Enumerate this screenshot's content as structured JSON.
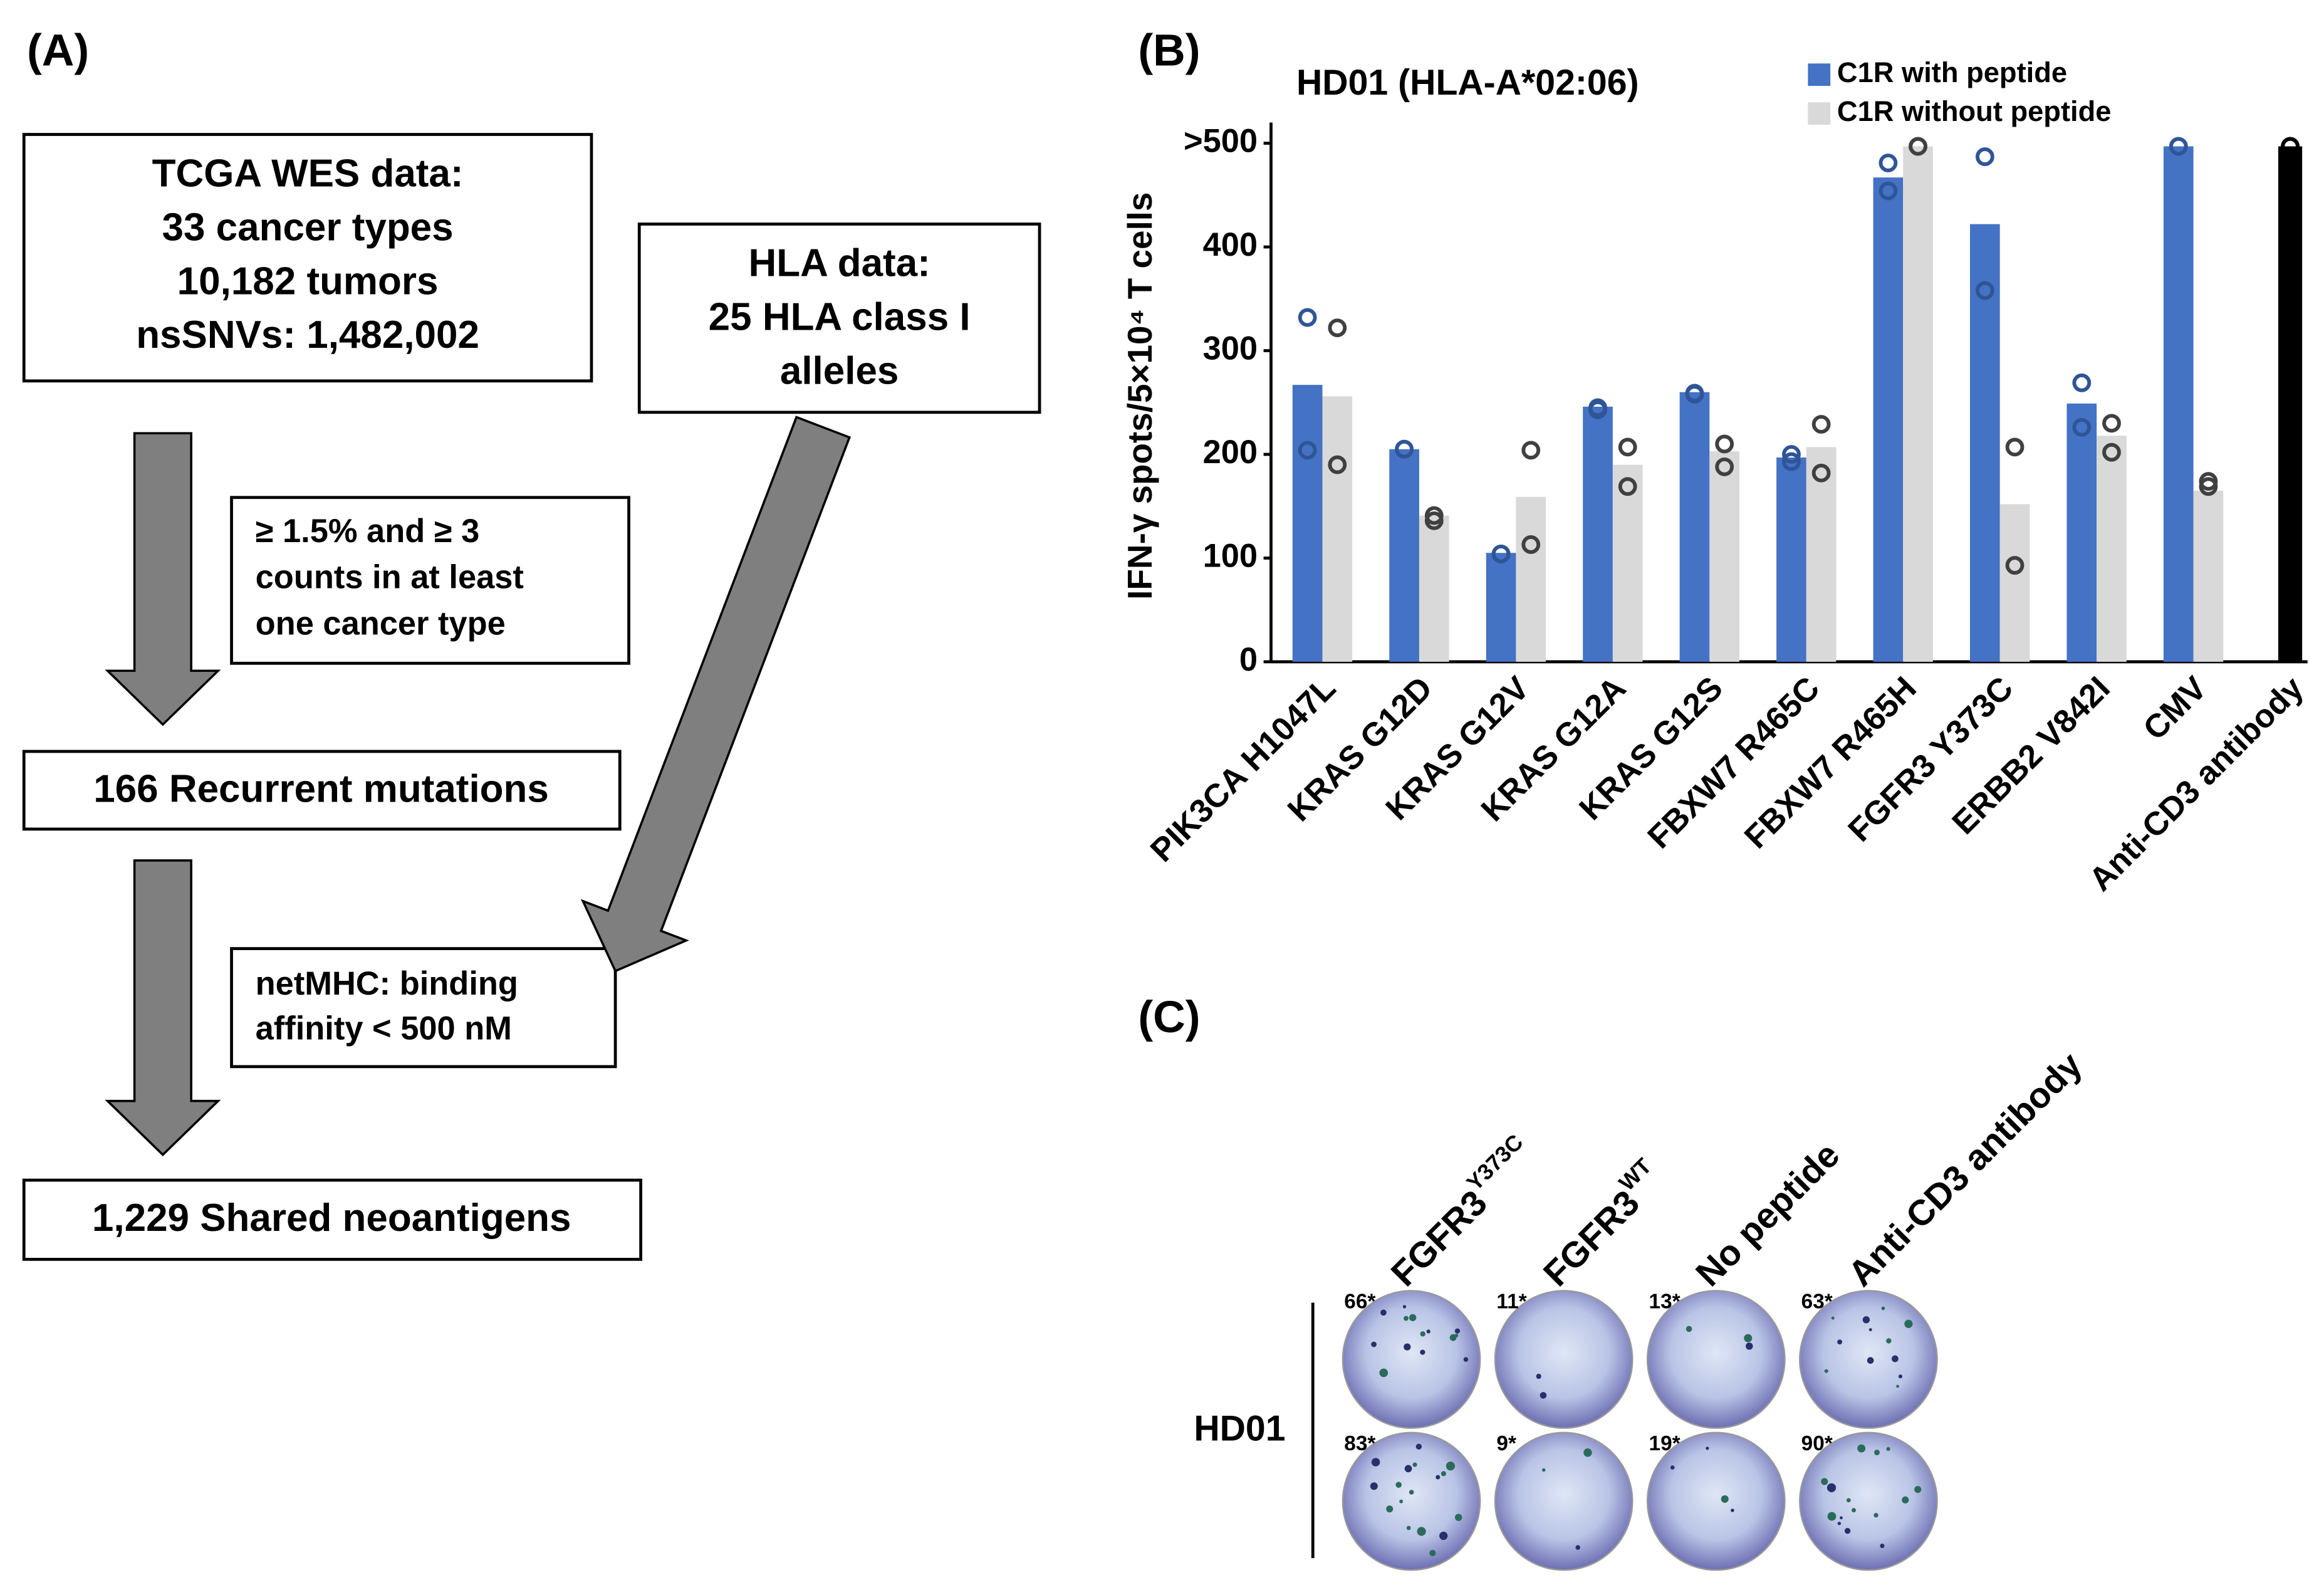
{
  "panel_a": {
    "label": "(A)",
    "tcga_box": [
      "TCGA WES data:",
      "33 cancer types",
      "10,182 tumors",
      "nsSNVs: 1,482,002"
    ],
    "hla_box": [
      "HLA data:",
      "25 HLA class I",
      "alleles"
    ],
    "criteria_box": [
      "≥ 1.5%  and ≥ 3",
      "counts in at least",
      "one cancer type"
    ],
    "recurrent_box": "166 Recurrent mutations",
    "netmhc_box": [
      "netMHC: binding",
      "affinity < 500 nM"
    ],
    "neoantigen_box": "1,229 Shared neoantigens"
  },
  "panel_b": {
    "label": "(B)"
  },
  "chart_data": {
    "type": "bar",
    "title": "HD01 (HLA-A*02:06)",
    "y_label": "IFN-γ spots/5×10⁴ T cells",
    "categories": [
      "PIK3CA H1047L",
      "KRAS G12D",
      "KRAS G12V",
      "KRAS G12A",
      "KRAS G12S",
      "FBXW7 R465C",
      "FBXW7 R465H",
      "FGFR3 Y373C",
      "ERBB2 V842I",
      "CMV",
      "Anti-CD3 antibody"
    ],
    "series": [
      {
        "name": "C1R with peptide",
        "color": "#4472c4",
        "marker_color": "#2f5597",
        "colors": [
          "#4472c4",
          "#4472c4",
          "#4472c4",
          "#4472c4",
          "#4472c4",
          "#4472c4",
          "#4472c4",
          "#4472c4",
          "#4472c4",
          "#4472c4",
          "#000000"
        ],
        "values": [
          267,
          205,
          105,
          246,
          260,
          197,
          467,
          422,
          249,
          497,
          497
        ],
        "replicates": [
          [
            332,
            204
          ],
          [
            205,
            205
          ],
          [
            104,
            104
          ],
          [
            245,
            243
          ],
          [
            258,
            259
          ],
          [
            200,
            193
          ],
          [
            481,
            454
          ],
          [
            487,
            358
          ],
          [
            269,
            226
          ],
          [
            497,
            497
          ],
          [
            497,
            497
          ]
        ]
      },
      {
        "name": "C1R without peptide",
        "color": "#d9d9d9",
        "marker_color": "#404040",
        "values": [
          256,
          141,
          159,
          190,
          203,
          207,
          497,
          152,
          218,
          165,
          null
        ],
        "replicates": [
          [
            322,
            190
          ],
          [
            141,
            136
          ],
          [
            204,
            113
          ],
          [
            207,
            169
          ],
          [
            210,
            188
          ],
          [
            229,
            182
          ],
          [
            497,
            497
          ],
          [
            207,
            93
          ],
          [
            230,
            202
          ],
          [
            174,
            169
          ],
          null
        ]
      }
    ],
    "ylim": [
      0,
      520
    ],
    "yticks": [
      0,
      100,
      200,
      300,
      400,
      {
        "value": 500,
        "label": ">500"
      }
    ],
    "grid": false,
    "legend": "upper right"
  },
  "panel_c": {
    "label": "(C)",
    "row_label": "HD01",
    "columns": [
      {
        "text": "FGFR3",
        "sup": "Y373C"
      },
      {
        "text": "FGFR3",
        "sup": "WT"
      },
      {
        "text": "No peptide"
      },
      {
        "text": "Anti-CD3 antibody"
      }
    ],
    "counts": [
      [
        "66*",
        "11*",
        "13*",
        "63*"
      ],
      [
        "83*",
        "9*",
        "19*",
        "90*"
      ]
    ]
  }
}
